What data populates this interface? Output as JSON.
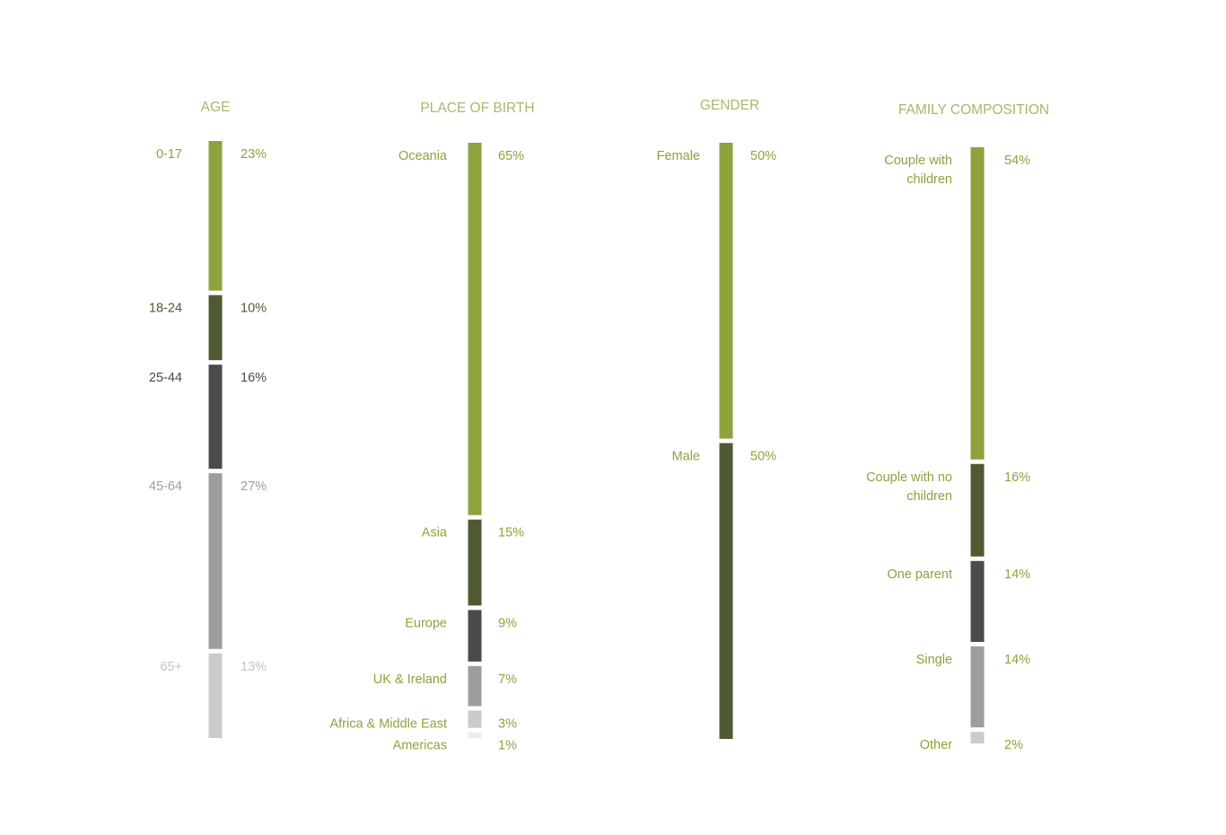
{
  "colors": {
    "title": "#a6b96a",
    "light_green": "#8ea23e",
    "dark_green": "#4f5a33",
    "charcoal": "#4b4b4b",
    "gray": "#9d9d9d",
    "light_gray": "#cbcbcb",
    "pale_gray": "#ececec",
    "faded_text": "#c4c4c4"
  },
  "chart_data": [
    {
      "type": "bar",
      "stacked": true,
      "orientation": "vertical",
      "title": "AGE",
      "categories": [
        "0-17",
        "18-24",
        "25-44",
        "45-64",
        "65+"
      ],
      "values": [
        23,
        10,
        16,
        27,
        13
      ],
      "value_labels": [
        "23%",
        "10%",
        "16%",
        "27%",
        "13%"
      ],
      "colors": [
        "#8ea23e",
        "#4f5a33",
        "#4b4b4b",
        "#9d9d9d",
        "#cbcbcb"
      ],
      "label_colors": [
        "#8ea23e",
        "#4f5a33",
        "#4b4b4b",
        "#9d9d9d",
        "#c4c4c4"
      ],
      "unit": "%"
    },
    {
      "type": "bar",
      "stacked": true,
      "orientation": "vertical",
      "title": "PLACE OF BIRTH",
      "categories": [
        "Oceania",
        "Asia",
        "Europe",
        "UK & Ireland",
        "Africa & Middle East",
        "Americas"
      ],
      "values": [
        65,
        15,
        9,
        7,
        3,
        1
      ],
      "value_labels": [
        "65%",
        "15%",
        "9%",
        "7%",
        "3%",
        "1%"
      ],
      "colors": [
        "#8ea23e",
        "#4f5a33",
        "#4b4b4b",
        "#9d9d9d",
        "#cbcbcb",
        "#ececec"
      ],
      "label_colors": [
        "#8ea23e",
        "#8ea23e",
        "#8ea23e",
        "#8ea23e",
        "#8ea23e",
        "#8ea23e"
      ],
      "unit": "%"
    },
    {
      "type": "bar",
      "stacked": true,
      "orientation": "vertical",
      "title": "GENDER",
      "categories": [
        "Female",
        "Male"
      ],
      "values": [
        50,
        50
      ],
      "value_labels": [
        "50%",
        "50%"
      ],
      "colors": [
        "#8ea23e",
        "#4f5a33"
      ],
      "label_colors": [
        "#8ea23e",
        "#8ea23e"
      ],
      "unit": "%"
    },
    {
      "type": "bar",
      "stacked": true,
      "orientation": "vertical",
      "title": "FAMILY  COMPOSITION",
      "categories": [
        "Couple with children",
        "Couple with no children",
        "One parent",
        "Single",
        "Other"
      ],
      "values": [
        54,
        16,
        14,
        14,
        2
      ],
      "value_labels": [
        "54%",
        "16%",
        "14%",
        "14%",
        "2%"
      ],
      "colors": [
        "#8ea23e",
        "#4f5a33",
        "#4b4b4b",
        "#9d9d9d",
        "#cbcbcb"
      ],
      "label_colors": [
        "#8ea23e",
        "#8ea23e",
        "#8ea23e",
        "#8ea23e",
        "#8ea23e"
      ],
      "unit": "%"
    }
  ]
}
